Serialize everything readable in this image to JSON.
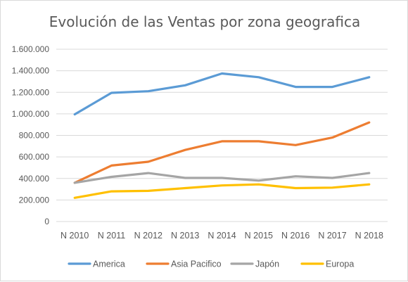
{
  "chart_data": {
    "type": "line",
    "title": "Evolución de las Ventas por zona geografica",
    "xlabel": "",
    "ylabel": "",
    "categories": [
      "N 2010",
      "N 2011",
      "N 2012",
      "N 2013",
      "N 2014",
      "N 2015",
      "N 2016",
      "N 2017",
      "N 2018"
    ],
    "ylim": [
      0,
      1600000
    ],
    "yticks": [
      0,
      200000,
      400000,
      600000,
      800000,
      1000000,
      1200000,
      1400000,
      1600000
    ],
    "ytick_labels": [
      "0",
      "200.000",
      "400.000",
      "600.000",
      "800.000",
      "1.000.000",
      "1.200.000",
      "1.400.000",
      "1.600.000"
    ],
    "grid": true,
    "legend_position": "bottom",
    "series": [
      {
        "name": "America",
        "color": "#5b9bd5",
        "values": [
          995000,
          1195000,
          1210000,
          1265000,
          1375000,
          1340000,
          1250000,
          1250000,
          1340000
        ]
      },
      {
        "name": "Asia Pacifico",
        "color": "#ed7d31",
        "values": [
          360000,
          520000,
          555000,
          665000,
          745000,
          745000,
          710000,
          780000,
          920000
        ]
      },
      {
        "name": "Japón",
        "color": "#a5a5a5",
        "values": [
          360000,
          415000,
          450000,
          405000,
          405000,
          380000,
          420000,
          405000,
          450000
        ]
      },
      {
        "name": "Europa",
        "color": "#ffc000",
        "values": [
          220000,
          280000,
          285000,
          310000,
          335000,
          345000,
          310000,
          315000,
          345000
        ]
      }
    ]
  }
}
